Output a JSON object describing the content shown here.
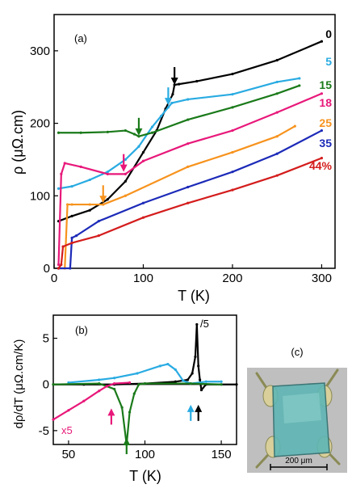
{
  "chart_data": [
    {
      "panel_label": "(a)",
      "type": "line",
      "xlabel": "T (K)",
      "ylabel": "ρ (μΩ.cm)",
      "xlim": [
        0,
        315
      ],
      "ylim": [
        0,
        350
      ],
      "xticks": [
        "0",
        "100",
        "200",
        "300"
      ],
      "yticks": [
        "0",
        "100",
        "200",
        "300"
      ],
      "grid": false,
      "legend": "right",
      "series": [
        {
          "name": "0",
          "color": "#000000",
          "x": [
            5,
            20,
            40,
            60,
            80,
            100,
            115,
            125,
            133,
            135,
            140,
            160,
            200,
            250,
            300
          ],
          "y": [
            65,
            72,
            80,
            95,
            120,
            160,
            190,
            220,
            240,
            253,
            254,
            258,
            268,
            287,
            313
          ]
        },
        {
          "name": "5",
          "color": "#29abe2",
          "x": [
            5,
            20,
            40,
            60,
            80,
            95,
            110,
            120,
            128,
            132,
            150,
            200,
            250,
            275
          ],
          "y": [
            110,
            113,
            122,
            133,
            150,
            168,
            195,
            210,
            222,
            228,
            233,
            240,
            257,
            262
          ]
        },
        {
          "name": "15",
          "color": "#1a7a1a",
          "x": [
            5,
            30,
            60,
            80,
            90,
            95,
            110,
            150,
            200,
            250,
            275
          ],
          "y": [
            187,
            187,
            188,
            190,
            185,
            182,
            187,
            205,
            222,
            241,
            252
          ]
        },
        {
          "name": "18",
          "color": "#e8187a",
          "x": [
            5,
            8,
            12,
            30,
            60,
            80,
            100,
            150,
            200,
            250,
            300
          ],
          "y": [
            5,
            130,
            145,
            140,
            130,
            130,
            148,
            172,
            190,
            215,
            241
          ]
        },
        {
          "name": "25",
          "color": "#f7931e",
          "x": [
            5,
            12,
            15,
            20,
            40,
            55,
            80,
            150,
            200,
            250,
            270
          ],
          "y": [
            0,
            0,
            88,
            88,
            88,
            88,
            100,
            140,
            160,
            182,
            196
          ]
        },
        {
          "name": "35",
          "color": "#1c2ab8",
          "x": [
            5,
            18,
            20,
            25,
            50,
            100,
            150,
            200,
            250,
            300
          ],
          "y": [
            0,
            0,
            42,
            45,
            65,
            90,
            112,
            133,
            158,
            190
          ]
        },
        {
          "name": "44%",
          "color": "#d41c1c",
          "x": [
            5,
            8,
            10,
            20,
            50,
            100,
            150,
            200,
            250,
            300
          ],
          "y": [
            0,
            5,
            30,
            35,
            45,
            70,
            90,
            108,
            128,
            152
          ]
        }
      ],
      "arrows": [
        {
          "color": "#000000",
          "x": 135,
          "y": 253
        },
        {
          "color": "#29abe2",
          "x": 128,
          "y": 225
        },
        {
          "color": "#1a7a1a",
          "x": 95,
          "y": 183
        },
        {
          "color": "#e8187a",
          "x": 78,
          "y": 133
        },
        {
          "color": "#f7931e",
          "x": 55,
          "y": 90
        }
      ]
    },
    {
      "panel_label": "(b)",
      "type": "line",
      "xlabel": "T (K)",
      "ylabel": "dρ/dT (μΩ.cm/K)",
      "xlim": [
        40,
        160
      ],
      "ylim": [
        -6.5,
        7.5
      ],
      "xticks": [
        "50",
        "100",
        "150"
      ],
      "yticks": [
        "-5",
        "0",
        "5"
      ],
      "grid": false,
      "annotations": [
        "/5",
        "x5"
      ],
      "series": [
        {
          "name": "0",
          "color": "#000000",
          "x": [
            40,
            60,
            80,
            100,
            120,
            128,
            131,
            133,
            134,
            135,
            136,
            137,
            140,
            160
          ],
          "y": [
            0,
            0,
            0,
            0.1,
            0.3,
            0.5,
            1.2,
            3,
            6.5,
            2,
            0.5,
            -0.6,
            0,
            0
          ]
        },
        {
          "name": "5",
          "color": "#29abe2",
          "x": [
            50,
            70,
            80,
            95,
            110,
            115,
            120,
            125,
            130,
            140,
            150
          ],
          "y": [
            0.2,
            0.5,
            0.7,
            1.2,
            2.0,
            2.2,
            1.6,
            0.4,
            0.1,
            0.3,
            0.3
          ]
        },
        {
          "name": "15",
          "color": "#1a7a1a",
          "x": [
            40,
            70,
            80,
            85,
            88,
            90,
            93,
            96,
            100,
            130,
            150
          ],
          "y": [
            0,
            0.1,
            -0.5,
            -2.5,
            -6.5,
            -3,
            -1,
            0,
            0.1,
            0.1,
            0
          ]
        },
        {
          "name": "18",
          "color": "#e8187a",
          "x": [
            40,
            50,
            60,
            70,
            75,
            80,
            90
          ],
          "y": [
            -3.8,
            -2.8,
            -1.8,
            -0.7,
            -0.2,
            0.1,
            0.2
          ]
        }
      ],
      "arrows": [
        {
          "color": "#e8187a",
          "x": 78,
          "y": -2.6
        },
        {
          "color": "#1a7a1a",
          "x": 88,
          "y": -5.8
        },
        {
          "color": "#29abe2",
          "x": 130,
          "y": -2.2
        },
        {
          "color": "#000000",
          "x": 135,
          "y": -2.2
        }
      ]
    }
  ],
  "panel_c": {
    "label": "(c)",
    "scalebar_text": "200 μm"
  }
}
